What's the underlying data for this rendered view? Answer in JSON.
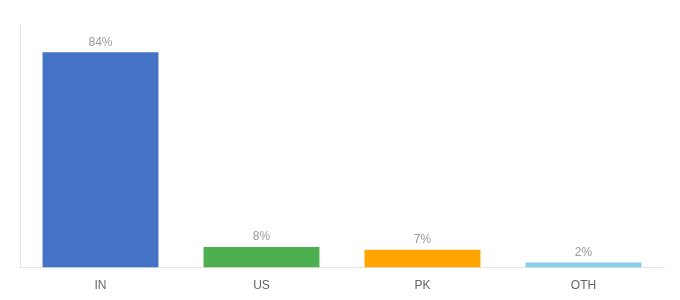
{
  "chart_data": {
    "type": "bar",
    "categories": [
      "IN",
      "US",
      "PK",
      "OTH"
    ],
    "values": [
      84,
      8,
      7,
      2
    ],
    "value_labels": [
      "84%",
      "8%",
      "7%",
      "2%"
    ],
    "colors": [
      "#4472C4",
      "#4CAF50",
      "#FFA500",
      "#87CEEB"
    ],
    "ylim": [
      0,
      95
    ],
    "yticks": [],
    "grid": false,
    "data_labels": true,
    "tick_labels": "x"
  }
}
